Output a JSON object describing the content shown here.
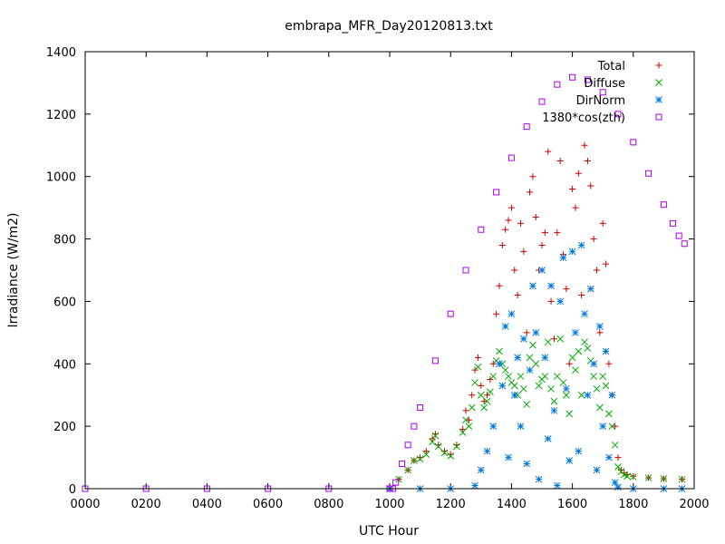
{
  "chart_data": {
    "type": "scatter",
    "title": "embrapa_MFR_Day20120813.txt",
    "xlabel": "UTC Hour",
    "ylabel": "Irradiance (W/m2)",
    "xlim": [
      0,
      2000
    ],
    "ylim": [
      0,
      1400
    ],
    "x_ticks": [
      "0000",
      "0200",
      "0400",
      "0600",
      "0800",
      "1000",
      "1200",
      "1400",
      "1600",
      "1800",
      "2000"
    ],
    "x_tick_values": [
      0,
      200,
      400,
      600,
      800,
      1000,
      1200,
      1400,
      1600,
      1800,
      2000
    ],
    "y_ticks": [
      "0",
      "200",
      "400",
      "600",
      "800",
      "1000",
      "1200",
      "1400"
    ],
    "y_tick_values": [
      0,
      200,
      400,
      600,
      800,
      1000,
      1200,
      1400
    ],
    "legend_position": "top-right",
    "series": [
      {
        "name": "Total",
        "marker": "plus",
        "color": "#cc0000",
        "x": [
          1000,
          1030,
          1060,
          1080,
          1100,
          1120,
          1140,
          1150,
          1160,
          1180,
          1200,
          1220,
          1240,
          1250,
          1260,
          1270,
          1280,
          1290,
          1300,
          1310,
          1320,
          1330,
          1340,
          1350,
          1360,
          1370,
          1380,
          1390,
          1400,
          1410,
          1420,
          1430,
          1440,
          1450,
          1460,
          1470,
          1480,
          1490,
          1500,
          1510,
          1520,
          1530,
          1540,
          1550,
          1560,
          1570,
          1580,
          1590,
          1600,
          1610,
          1620,
          1630,
          1640,
          1650,
          1660,
          1670,
          1680,
          1690,
          1700,
          1710,
          1720,
          1730,
          1740,
          1750,
          1760,
          1770,
          1780,
          1800,
          1850,
          1900,
          1960
        ],
        "y": [
          0,
          30,
          60,
          90,
          100,
          120,
          160,
          175,
          140,
          120,
          110,
          140,
          190,
          250,
          220,
          300,
          380,
          420,
          330,
          280,
          300,
          350,
          400,
          560,
          650,
          780,
          830,
          860,
          900,
          700,
          620,
          850,
          760,
          500,
          950,
          1000,
          870,
          700,
          780,
          820,
          1080,
          600,
          480,
          820,
          1050,
          750,
          640,
          400,
          960,
          900,
          1010,
          620,
          1100,
          1050,
          970,
          800,
          700,
          500,
          850,
          720,
          400,
          300,
          200,
          100,
          60,
          50,
          45,
          40,
          35,
          32,
          30
        ]
      },
      {
        "name": "Diffuse",
        "marker": "x",
        "color": "#00aa00",
        "x": [
          1000,
          1030,
          1060,
          1080,
          1100,
          1120,
          1140,
          1150,
          1160,
          1180,
          1200,
          1220,
          1240,
          1250,
          1260,
          1270,
          1280,
          1290,
          1300,
          1310,
          1320,
          1330,
          1340,
          1350,
          1360,
          1370,
          1380,
          1390,
          1400,
          1410,
          1420,
          1430,
          1440,
          1450,
          1460,
          1470,
          1480,
          1490,
          1500,
          1510,
          1520,
          1530,
          1540,
          1550,
          1560,
          1570,
          1580,
          1590,
          1600,
          1610,
          1620,
          1630,
          1640,
          1650,
          1660,
          1670,
          1680,
          1690,
          1700,
          1710,
          1720,
          1730,
          1740,
          1750,
          1760,
          1770,
          1780,
          1800,
          1850,
          1900,
          1960
        ],
        "y": [
          0,
          30,
          60,
          90,
          95,
          110,
          150,
          170,
          135,
          115,
          105,
          135,
          180,
          220,
          200,
          260,
          340,
          390,
          300,
          260,
          280,
          310,
          360,
          410,
          440,
          400,
          380,
          360,
          340,
          330,
          300,
          360,
          320,
          270,
          420,
          460,
          400,
          330,
          350,
          360,
          470,
          320,
          280,
          360,
          480,
          340,
          300,
          240,
          420,
          380,
          440,
          300,
          470,
          450,
          410,
          360,
          320,
          260,
          360,
          330,
          240,
          200,
          140,
          70,
          55,
          45,
          40,
          38,
          35,
          32,
          30
        ]
      },
      {
        "name": "DirNorm",
        "marker": "star",
        "color": "#0077dd",
        "x": [
          1000,
          1100,
          1200,
          1280,
          1300,
          1320,
          1340,
          1360,
          1370,
          1380,
          1390,
          1400,
          1410,
          1420,
          1430,
          1440,
          1450,
          1460,
          1470,
          1480,
          1490,
          1500,
          1510,
          1520,
          1530,
          1540,
          1550,
          1560,
          1570,
          1580,
          1590,
          1600,
          1610,
          1620,
          1630,
          1640,
          1650,
          1660,
          1670,
          1680,
          1690,
          1700,
          1710,
          1720,
          1730,
          1740,
          1750,
          1800,
          1900,
          1960
        ],
        "y": [
          0,
          0,
          0,
          10,
          60,
          120,
          200,
          400,
          330,
          520,
          100,
          560,
          300,
          420,
          200,
          480,
          80,
          380,
          650,
          500,
          30,
          700,
          420,
          160,
          650,
          250,
          10,
          600,
          740,
          320,
          90,
          760,
          500,
          120,
          780,
          560,
          300,
          640,
          400,
          60,
          520,
          200,
          440,
          100,
          300,
          20,
          5,
          0,
          0,
          0
        ]
      },
      {
        "name": "1380*cos(zth)",
        "marker": "square",
        "color": "#aa00ee",
        "x": [
          0,
          200,
          400,
          600,
          800,
          1000,
          1010,
          1020,
          1040,
          1060,
          1080,
          1100,
          1150,
          1200,
          1250,
          1300,
          1350,
          1400,
          1450,
          1500,
          1550,
          1600,
          1650,
          1700,
          1750,
          1800,
          1850,
          1900,
          1930,
          1950,
          1968
        ],
        "y": [
          0,
          0,
          0,
          0,
          0,
          0,
          0,
          20,
          80,
          140,
          200,
          260,
          410,
          560,
          700,
          830,
          950,
          1060,
          1160,
          1240,
          1295,
          1318,
          1310,
          1270,
          1200,
          1110,
          1010,
          910,
          850,
          810,
          785
        ]
      }
    ]
  }
}
